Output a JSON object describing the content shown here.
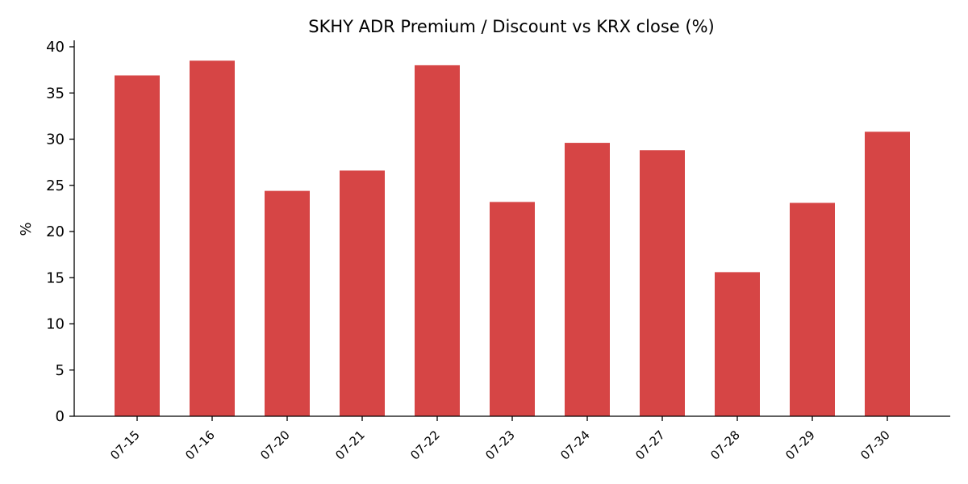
{
  "chart_data": {
    "type": "bar",
    "title": "SKHY ADR Premium / Discount vs KRX close (%)",
    "xlabel": "",
    "ylabel": "%",
    "categories": [
      "07-15",
      "07-16",
      "07-20",
      "07-21",
      "07-22",
      "07-23",
      "07-24",
      "07-27",
      "07-28",
      "07-29",
      "07-30"
    ],
    "values": [
      36.9,
      38.5,
      24.4,
      26.6,
      38.0,
      23.2,
      29.6,
      28.8,
      15.6,
      23.1,
      30.8
    ],
    "ylim": [
      0,
      40
    ],
    "yticks": [
      0,
      5,
      10,
      15,
      20,
      25,
      30,
      35,
      40
    ],
    "grid": false,
    "bar_color": "#d64545"
  }
}
